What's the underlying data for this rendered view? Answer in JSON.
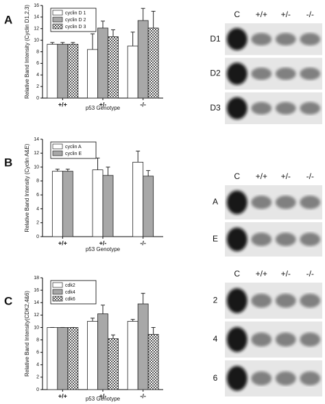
{
  "chart_data": [
    {
      "type": "bar",
      "panel": "A",
      "ylabel": "Relative Band Intensity (Cyclin D1,2,3)",
      "xlabel": "p53 Genotype",
      "categories": [
        "+/+",
        "+/-",
        "-/-"
      ],
      "ylim": [
        0,
        16
      ],
      "yticks": [
        0,
        2,
        4,
        6,
        8,
        10,
        12,
        14,
        16
      ],
      "series": [
        {
          "name": "cyclin D 1",
          "color": "#ffffff",
          "values": [
            9.3,
            8.4,
            9.0
          ],
          "errors": [
            0.3,
            2.7,
            2.4
          ]
        },
        {
          "name": "cyclin D 2",
          "color": "#a8a8a8",
          "values": [
            9.3,
            12.1,
            13.4
          ],
          "errors": [
            0.3,
            1.2,
            2.1
          ]
        },
        {
          "name": "cyclin D 3",
          "color": "#888888",
          "pattern": "checkered",
          "values": [
            9.3,
            10.6,
            12.1
          ],
          "errors": [
            0.3,
            1.2,
            2.9
          ]
        }
      ]
    },
    {
      "type": "bar",
      "panel": "B",
      "ylabel": "Relative Band Intensity (Cyclin A&E)",
      "xlabel": "p53 Genotype",
      "categories": [
        "+/+",
        "+/-",
        "-/-"
      ],
      "ylim": [
        0,
        14
      ],
      "yticks": [
        0,
        2,
        4,
        6,
        8,
        10,
        12,
        14
      ],
      "series": [
        {
          "name": "cyclin A",
          "color": "#ffffff",
          "values": [
            9.4,
            9.6,
            10.7
          ],
          "errors": [
            0.3,
            1.7,
            1.6
          ]
        },
        {
          "name": "cyclin E",
          "color": "#a8a8a8",
          "values": [
            9.4,
            8.8,
            8.7
          ],
          "errors": [
            0.3,
            1.2,
            0.8
          ]
        }
      ]
    },
    {
      "type": "bar",
      "panel": "C",
      "ylabel": "Relative Band Intensity(CDK2,4&6)",
      "xlabel": "p53 Genotype",
      "categories": [
        "+/+",
        "+/-",
        "-/-"
      ],
      "ylim": [
        0,
        18
      ],
      "yticks": [
        0,
        2,
        4,
        6,
        8,
        10,
        12,
        14,
        16,
        18
      ],
      "series": [
        {
          "name": "cdk2",
          "color": "#ffffff",
          "values": [
            10,
            11,
            11
          ],
          "errors": [
            0,
            0.5,
            0.3
          ]
        },
        {
          "name": "cdk4",
          "color": "#a8a8a8",
          "values": [
            10,
            12.2,
            13.8
          ],
          "errors": [
            0,
            1.4,
            1.7
          ]
        },
        {
          "name": "cdk6",
          "color": "#888888",
          "pattern": "checkered",
          "values": [
            10,
            8.2,
            8.9
          ],
          "errors": [
            0,
            0.6,
            1.1
          ]
        }
      ]
    }
  ],
  "blots": [
    {
      "lanes": [
        "C",
        "+/+",
        "+/-",
        "-/-"
      ],
      "rows": [
        "D1",
        "D2",
        "D3"
      ]
    },
    {
      "lanes": [
        "C",
        "+/+",
        "+/-",
        "-/-"
      ],
      "rows": [
        "A",
        "E"
      ]
    },
    {
      "lanes": [
        "C",
        "+/+",
        "+/-",
        "-/-"
      ],
      "rows": [
        "2",
        "4",
        "6"
      ]
    }
  ]
}
